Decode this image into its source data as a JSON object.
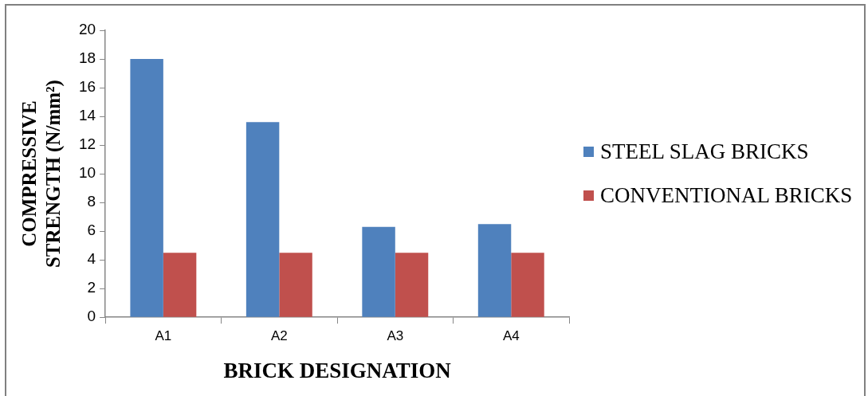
{
  "chart_data": {
    "type": "bar",
    "xlabel": "BRICK DESIGNATION",
    "ylabel": "COMPRESSIVE STRENGTH (N/mm²)",
    "categories": [
      "A1",
      "A2",
      "A3",
      "A4"
    ],
    "series": [
      {
        "name": "STEEL SLAG BRICKS",
        "color": "#4f81bd",
        "values": [
          18,
          13.6,
          6.3,
          6.5
        ]
      },
      {
        "name": "CONVENTIONAL BRICKS",
        "color": "#c0504d",
        "values": [
          4.5,
          4.5,
          4.5,
          4.5
        ]
      }
    ],
    "ylim": [
      0,
      20
    ],
    "yticks": [
      0,
      2,
      4,
      6,
      8,
      10,
      12,
      14,
      16,
      18,
      20
    ],
    "grid": false,
    "legend": "right"
  }
}
